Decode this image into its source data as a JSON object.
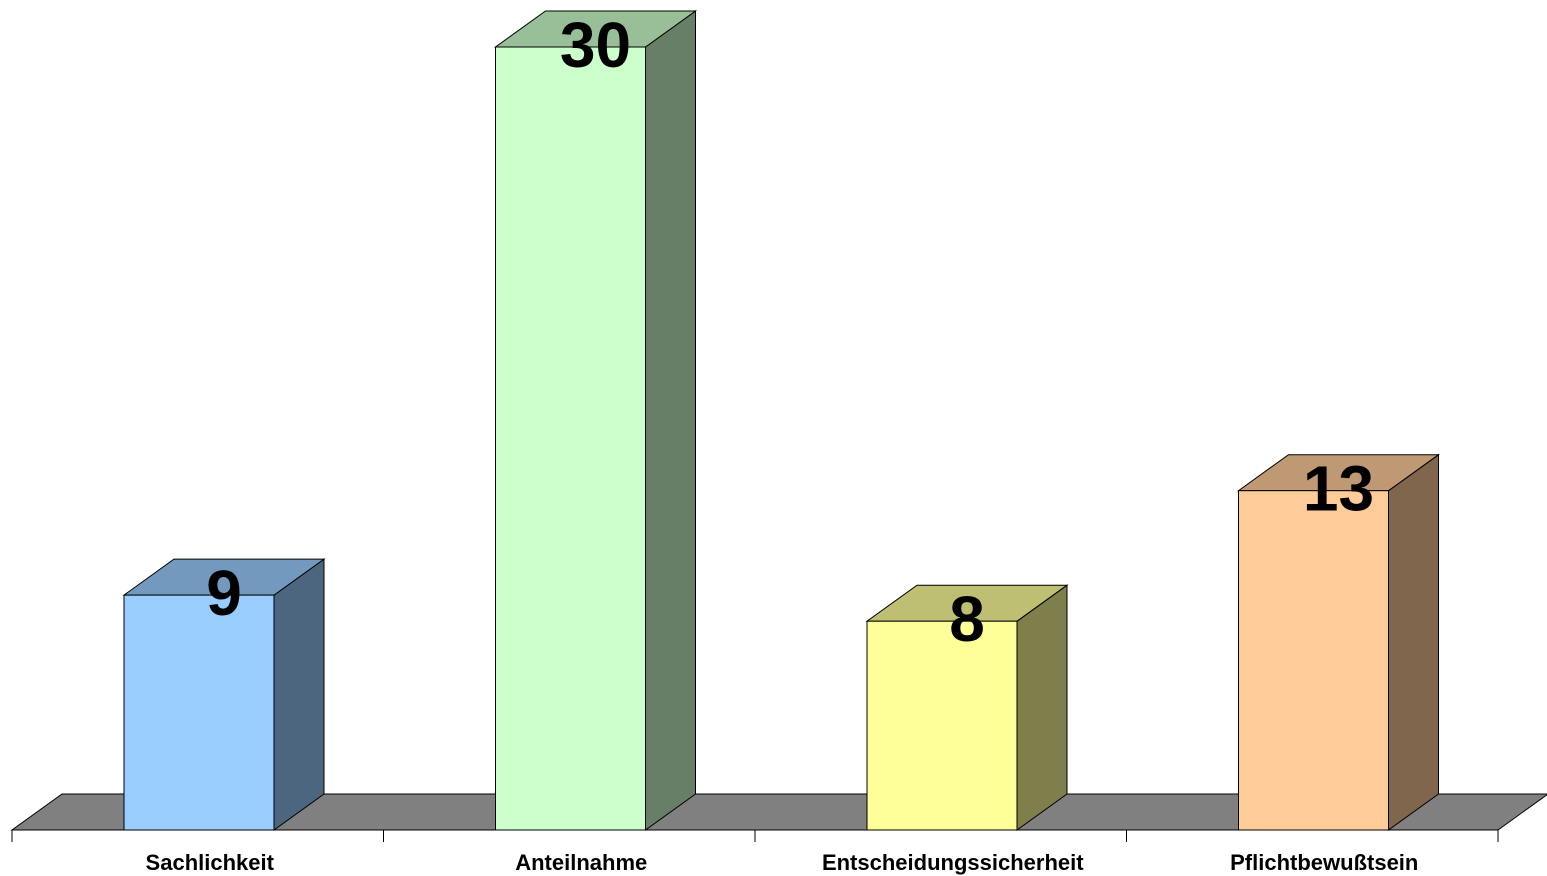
{
  "chart_data": {
    "type": "bar",
    "style": "3d-column",
    "categories": [
      "Sachlichkeit",
      "Anteilnahme",
      "Entscheidungssicherheit",
      "Pflichtbewußtsein"
    ],
    "values": [
      9,
      30,
      8,
      13
    ],
    "data_labels": [
      "9",
      "30",
      "8",
      "13"
    ],
    "colors": {
      "front": [
        "#99ccff",
        "#ccffcc",
        "#ffff99",
        "#ffcc99"
      ],
      "top": [
        "#7399bf",
        "#99bf99",
        "#bfbf73",
        "#bf9973"
      ],
      "side": [
        "#4c667f",
        "#667f66",
        "#7f7f4c",
        "#7f664c"
      ],
      "floor": "#808080",
      "outline": "#000000"
    },
    "ylim": [
      0,
      30
    ],
    "grid": false,
    "legend": "none"
  }
}
